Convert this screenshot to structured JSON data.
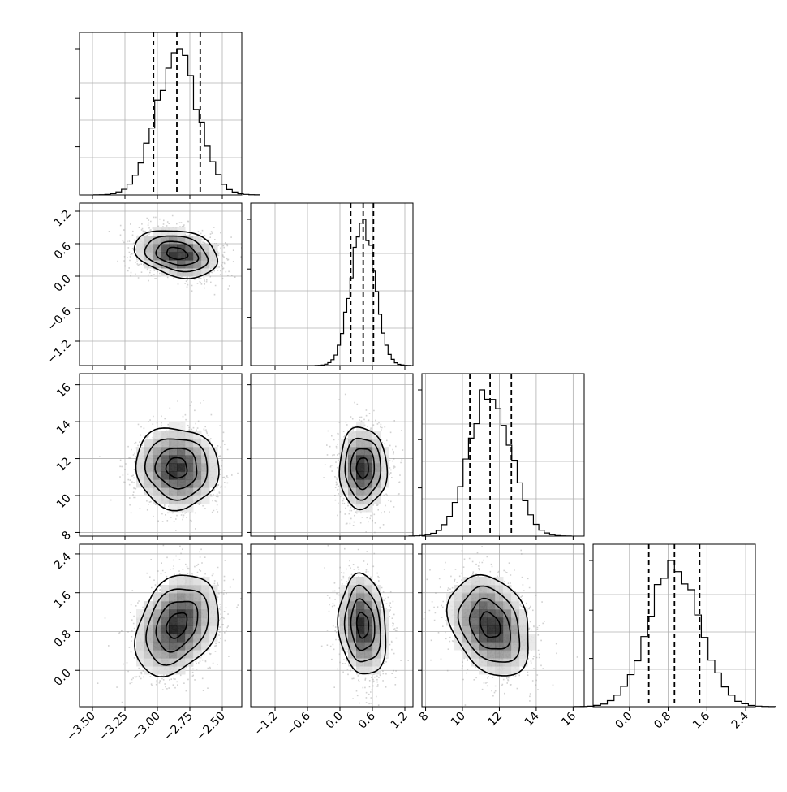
{
  "chart_data": {
    "type": "corner",
    "title": "",
    "parameters": [
      {
        "label": "",
        "range": [
          -3.6,
          -2.35
        ],
        "ticks": [
          -3.5,
          -3.25,
          -3.0,
          -2.75,
          -2.5
        ],
        "tick_labels": [
          "−3.50",
          "−3.25",
          "−3.00",
          "−2.75",
          "−2.50"
        ],
        "mean": -2.85,
        "sd": 0.16,
        "quantiles": [
          -3.03,
          -2.85,
          -2.67
        ],
        "hist_peak": [
          -2.84,
          1.0
        ]
      },
      {
        "label": "",
        "range": [
          -1.65,
          1.35
        ],
        "ticks": [
          -1.2,
          -0.6,
          0.0,
          0.6,
          1.2
        ],
        "tick_labels": [
          "−1.2",
          "−0.6",
          "0.0",
          "0.6",
          "1.2"
        ],
        "mean": 0.42,
        "sd": 0.22,
        "quantiles": [
          0.2,
          0.43,
          0.62
        ],
        "hist_peak": [
          0.45,
          1.0
        ]
      },
      {
        "label": "",
        "range": [
          7.8,
          16.6
        ],
        "ticks": [
          8,
          10,
          12,
          14,
          16
        ],
        "tick_labels": [
          "8",
          "10",
          "12",
          "14",
          "16"
        ],
        "mean": 11.5,
        "sd": 1.1,
        "quantiles": [
          10.4,
          11.5,
          12.65
        ],
        "hist_peak": [
          11.6,
          1.0
        ]
      },
      {
        "label": "",
        "range": [
          -0.75,
          2.6
        ],
        "ticks": [
          0.0,
          0.8,
          1.6,
          2.4
        ],
        "tick_labels": [
          "0.0",
          "0.8",
          "1.6",
          "2.4"
        ],
        "mean": 0.93,
        "sd": 0.52,
        "quantiles": [
          0.4,
          0.93,
          1.45
        ],
        "hist_peak": [
          0.85,
          1.0
        ]
      }
    ],
    "pair_correlations": {
      "1-0": -0.25,
      "2-0": -0.05,
      "3-0": 0.3,
      "2-1": 0.0,
      "3-1": -0.12,
      "3-2": -0.28
    },
    "samples_per_panel": 1400,
    "contour_levels_sigma": [
      0.5,
      1.0,
      1.5,
      2.0
    ],
    "grid": true,
    "histogram_bins": 30,
    "legend": "none"
  }
}
